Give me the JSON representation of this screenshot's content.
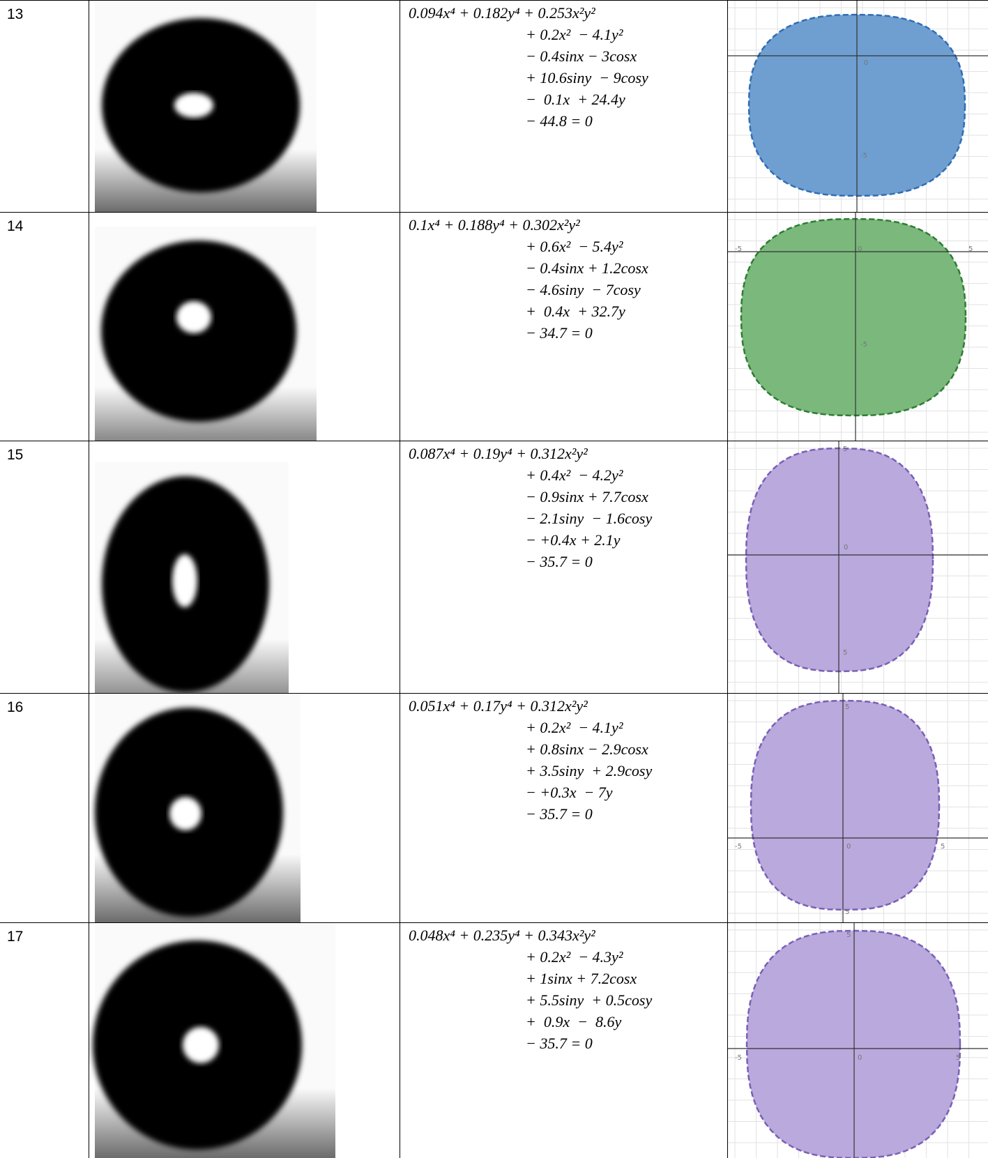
{
  "table": {
    "rows": [
      {
        "number": "13",
        "equation": [
          "0.094x⁴ + 0.182y⁴ + 0.253x²y²",
          "+ 0.2x²  − 4.1y²",
          "− 0.4sinx − 3cosx",
          "+ 10.6siny  − 9cosy",
          "−  0.1x  + 24.4y",
          "− 44.8 = 0"
        ],
        "plot": {
          "labels": [
            "0",
            "-5"
          ],
          "fill": "#6f9fd0",
          "stroke": "#2f6db5"
        }
      },
      {
        "number": "14",
        "equation": [
          "0.1x⁴ + 0.188y⁴ + 0.302x²y²",
          "+ 0.6x²  − 5.4y²",
          "− 0.4sinx + 1.2cosx",
          "− 4.6siny  − 7cosy",
          "+  0.4x  + 32.7y",
          "− 34.7 = 0"
        ],
        "plot": {
          "labels": [
            "-5",
            "0",
            "5",
            "-5"
          ],
          "fill": "#7bb87c",
          "stroke": "#2e7d32"
        }
      },
      {
        "number": "15",
        "equation": [
          "0.087x⁴ + 0.19y⁴ + 0.312x²y²",
          "+ 0.4x²  − 4.2y²",
          "− 0.9sinx + 7.7cosx",
          "− 2.1siny  − 1.6cosy",
          "− +0.4x + 2.1y",
          "− 35.7 = 0"
        ],
        "plot": {
          "labels": [
            "5",
            "0",
            "5"
          ],
          "fill": "#b9a9dc",
          "stroke": "#7a5fb5"
        }
      },
      {
        "number": "16",
        "equation": [
          "0.051x⁴ + 0.17y⁴ + 0.312x²y²",
          "+ 0.2x²  − 4.1y²",
          "+ 0.8sinx − 2.9cosx",
          "+ 3.5siny  + 2.9cosy",
          "− +0.3x  − 7y",
          "− 35.7 = 0"
        ],
        "plot": {
          "labels": [
            "5",
            "-5",
            "0",
            "5",
            "5"
          ],
          "fill": "#b9a9dc",
          "stroke": "#7a5fb5"
        }
      },
      {
        "number": "17",
        "equation": [
          "0.048x⁴ + 0.235y⁴ + 0.343x²y²",
          "+ 0.2x²  − 4.3y²",
          "+ 1sinx + 7.2cosx",
          "+ 5.5siny  + 0.5cosy",
          "+  0.9x  −  8.6y",
          "− 35.7 = 0"
        ],
        "plot": {
          "labels": [
            "5",
            "-5",
            "0",
            "5"
          ],
          "fill": "#b9a9dc",
          "stroke": "#7a5fb5"
        }
      }
    ]
  }
}
